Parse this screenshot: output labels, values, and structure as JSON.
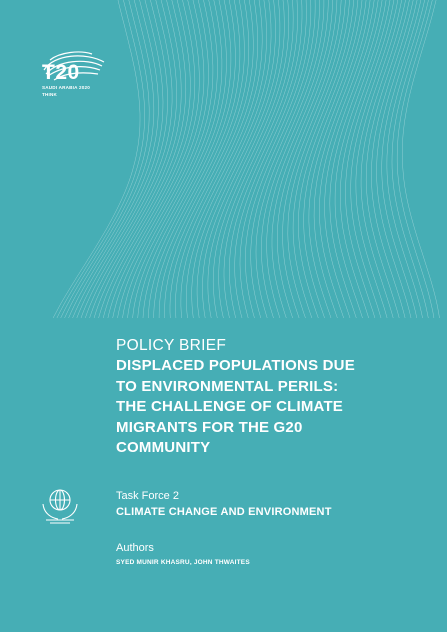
{
  "cover": {
    "background_color": "#46aeb5",
    "logo": {
      "mark": "T20",
      "line1": "SAUDI ARABIA 2020",
      "line2": "THINK"
    },
    "kicker": "POLICY BRIEF",
    "title_lines": [
      "DISPLACED POPULATIONS DUE",
      "TO ENVIRONMENTAL PERILS:",
      "THE CHALLENGE OF CLIMATE",
      "MIGRANTS FOR THE G20",
      "COMMUNITY"
    ],
    "task_force": {
      "icon": "globe-hands-icon",
      "label": "Task Force 2",
      "name": "CLIMATE CHANGE AND ENVIRONMENT"
    },
    "authors": {
      "label": "Authors",
      "names": "SYED MUNIR KHASRU, JOHN THWAITES"
    }
  }
}
